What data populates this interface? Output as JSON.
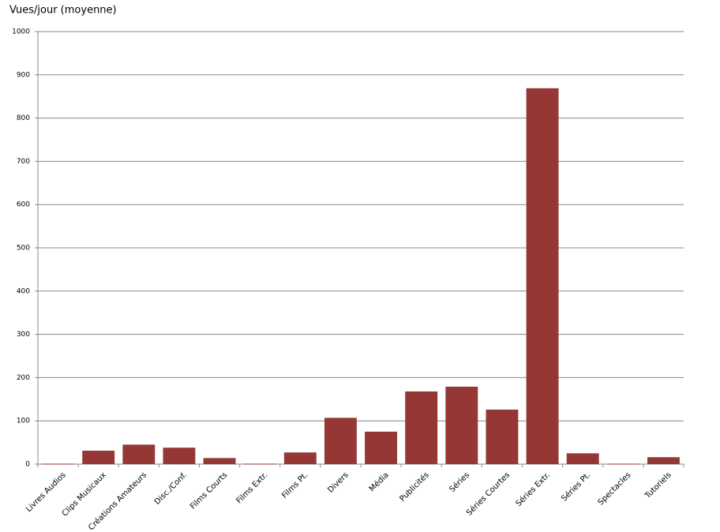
{
  "chart_data": {
    "type": "bar",
    "title": "Vues/jour (moyenne)",
    "categories": [
      "Livres Audios",
      "Clips Musicaux",
      "Créations Amateurs",
      "Disc./Conf.",
      "Films Courts",
      "Films Extr.",
      "Films Pt.",
      "Divers",
      "Média",
      "Publicités",
      "Séries",
      "Séries Courtes",
      "Séries Extr.",
      "Séries Pt.",
      "Spectacles",
      "Tutoriels"
    ],
    "values": [
      1,
      31,
      45,
      38,
      14,
      1,
      27,
      107,
      75,
      168,
      179,
      126,
      869,
      25,
      1,
      16
    ],
    "color": "#953735",
    "ylim": [
      0,
      1000
    ],
    "yticks": [
      0,
      100,
      200,
      300,
      400,
      500,
      600,
      700,
      800,
      900,
      1000
    ],
    "grid": true
  }
}
